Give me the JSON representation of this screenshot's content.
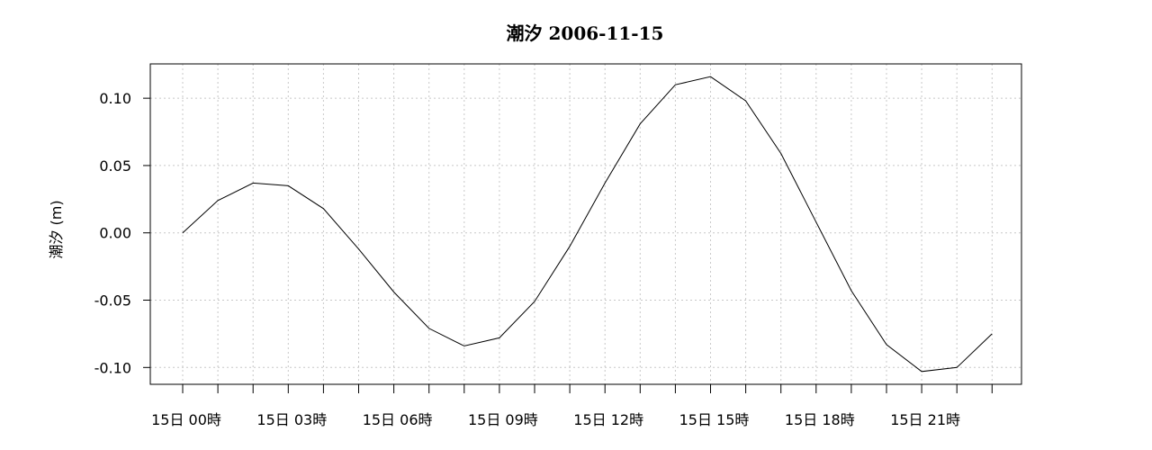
{
  "chart_data": {
    "type": "line",
    "title": "潮汐 2006-11-15",
    "xlabel": "",
    "ylabel": "潮汐 (m)",
    "ylim": [
      -0.1125,
      0.1255
    ],
    "yticks": [
      {
        "value": 0.1,
        "label": "0.10"
      },
      {
        "value": 0.05,
        "label": "0.05"
      },
      {
        "value": 0.0,
        "label": "0.00"
      },
      {
        "value": -0.05,
        "label": "-0.05"
      },
      {
        "value": -0.1,
        "label": "-0.10"
      }
    ],
    "x": [
      "00",
      "01",
      "02",
      "03",
      "04",
      "05",
      "06",
      "07",
      "08",
      "09",
      "10",
      "11",
      "12",
      "13",
      "14",
      "15",
      "16",
      "17",
      "18",
      "19",
      "20",
      "21",
      "22",
      "23"
    ],
    "xtick_labels": [
      {
        "index": 0,
        "label": "15日 00時"
      },
      {
        "index": 3,
        "label": "15日 03時"
      },
      {
        "index": 6,
        "label": "15日 06時"
      },
      {
        "index": 9,
        "label": "15日 09時"
      },
      {
        "index": 12,
        "label": "15日 12時"
      },
      {
        "index": 15,
        "label": "15日 15時"
      },
      {
        "index": 18,
        "label": "15日 18時"
      },
      {
        "index": 21,
        "label": "15日 21時"
      }
    ],
    "series": [
      {
        "values": [
          0.0,
          0.024,
          0.037,
          0.035,
          0.018,
          -0.012,
          -0.044,
          -0.071,
          -0.084,
          -0.078,
          -0.051,
          -0.01,
          0.037,
          0.081,
          0.11,
          0.116,
          0.098,
          0.059,
          0.008,
          -0.043,
          -0.083,
          -0.103,
          -0.1,
          -0.075
        ]
      }
    ],
    "grid": true,
    "colors": {
      "line": "#000000",
      "grid": "#c8c8c8",
      "axis": "#000000"
    }
  }
}
